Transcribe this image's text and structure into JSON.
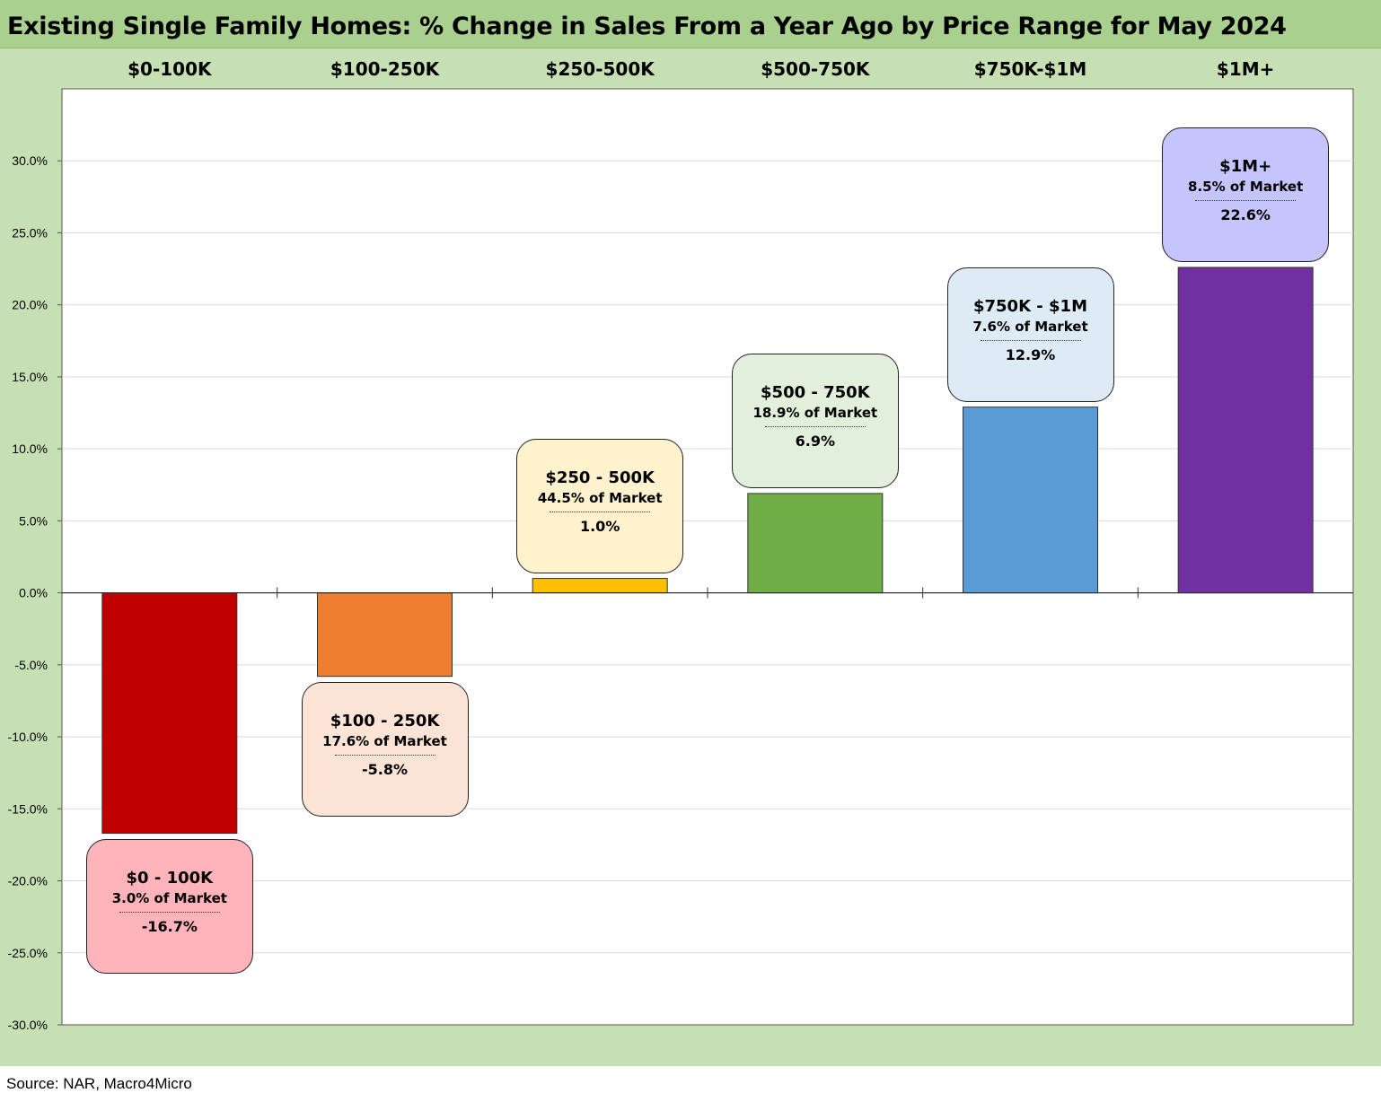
{
  "title": "Existing Single Family Homes: % Change in Sales From a Year Ago by Price Range for May 2024",
  "source": "Source:  NAR,  Macro4Micro",
  "chart_data": {
    "type": "bar",
    "title": "Existing Single Family Homes: % Change in Sales From a Year Ago by Price Range for May 2024",
    "categories": [
      "$0-100K",
      "$100-250K",
      "$250-500K",
      "$500-750K",
      "$750K-$1M",
      "$1M+"
    ],
    "values": [
      -16.7,
      -5.8,
      1.0,
      6.9,
      12.9,
      22.6
    ],
    "value_labels": [
      "-16.7%",
      "-5.8%",
      "1.0%",
      "6.9%",
      "12.9%",
      "22.6%"
    ],
    "bar_colors": [
      "#c00000",
      "#ed7d31",
      "#ffc000",
      "#70ad47",
      "#5b9bd5",
      "#7030a0"
    ],
    "callouts": [
      {
        "title": "$0 - 100K",
        "share": "3.0% of Market",
        "value": "-16.7%",
        "fill": "#ffb3ba"
      },
      {
        "title": "$100 - 250K",
        "share": "17.6% of Market",
        "value": "-5.8%",
        "fill": "#fbe4d5"
      },
      {
        "title": "$250 - 500K",
        "share": "44.5% of Market",
        "value": "1.0%",
        "fill": "#fff2cc"
      },
      {
        "title": "$500 - 750K",
        "share": "18.9% of Market",
        "value": "6.9%",
        "fill": "#e2efda"
      },
      {
        "title": "$750K - $1M",
        "share": "7.6% of Market",
        "value": "12.9%",
        "fill": "#ddebf7"
      },
      {
        "title": "$1M+",
        "share": "8.5% of Market",
        "value": "22.6%",
        "fill": "#c5c5fb"
      }
    ],
    "ylim": [
      -30,
      35
    ],
    "yticks": [
      30,
      25,
      20,
      15,
      10,
      5,
      0,
      -5,
      -10,
      -15,
      -20,
      -25,
      -30
    ],
    "ytick_labels": [
      "30.0%",
      "25.0%",
      "20.0%",
      "15.0%",
      "10.0%",
      "5.0%",
      "0.0%",
      "-5.0%",
      "-10.0%",
      "-15.0%",
      "-20.0%",
      "-25.0%",
      "-30.0%"
    ],
    "grid": true,
    "xlabel": "",
    "ylabel": ""
  }
}
